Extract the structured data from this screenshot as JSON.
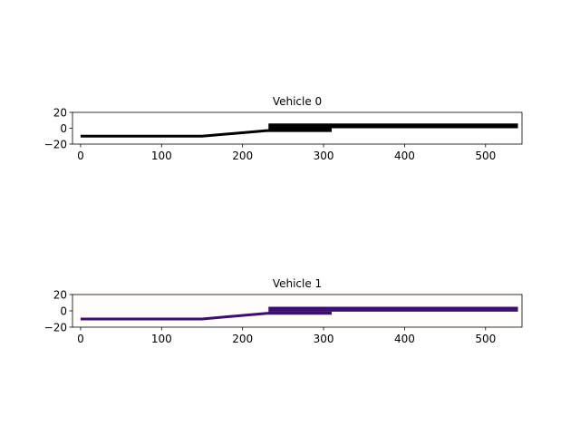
{
  "chart_data": [
    {
      "type": "line",
      "title": "Vehicle 0",
      "xlim": [
        -10,
        545
      ],
      "ylim": [
        -20,
        20
      ],
      "xticks": [
        0,
        100,
        200,
        300,
        400,
        500
      ],
      "yticks": [
        -20,
        0,
        20
      ],
      "color": "#000000",
      "background": "#ffffff",
      "series": [
        {
          "x": [
            0,
            150,
            230,
            310
          ],
          "y": [
            -10,
            -10,
            -3,
            -3
          ]
        }
      ],
      "bands": [
        {
          "x": [
            232,
            540
          ],
          "y": [
            0,
            6
          ]
        },
        {
          "x": [
            232,
            310
          ],
          "y": [
            -3,
            0
          ]
        }
      ]
    },
    {
      "type": "line",
      "title": "Vehicle 1",
      "xlim": [
        -10,
        545
      ],
      "ylim": [
        -20,
        20
      ],
      "xticks": [
        0,
        100,
        200,
        300,
        400,
        500
      ],
      "yticks": [
        -20,
        0,
        20
      ],
      "color": "#3b0f70",
      "background": "#fffcf9",
      "series": [
        {
          "x": [
            0,
            150,
            230,
            310
          ],
          "y": [
            -10,
            -10,
            -3,
            -3
          ]
        }
      ],
      "bands": [
        {
          "x": [
            232,
            540
          ],
          "y": [
            -1,
            5
          ]
        },
        {
          "x": [
            232,
            310
          ],
          "y": [
            -4,
            -1
          ]
        }
      ]
    }
  ]
}
